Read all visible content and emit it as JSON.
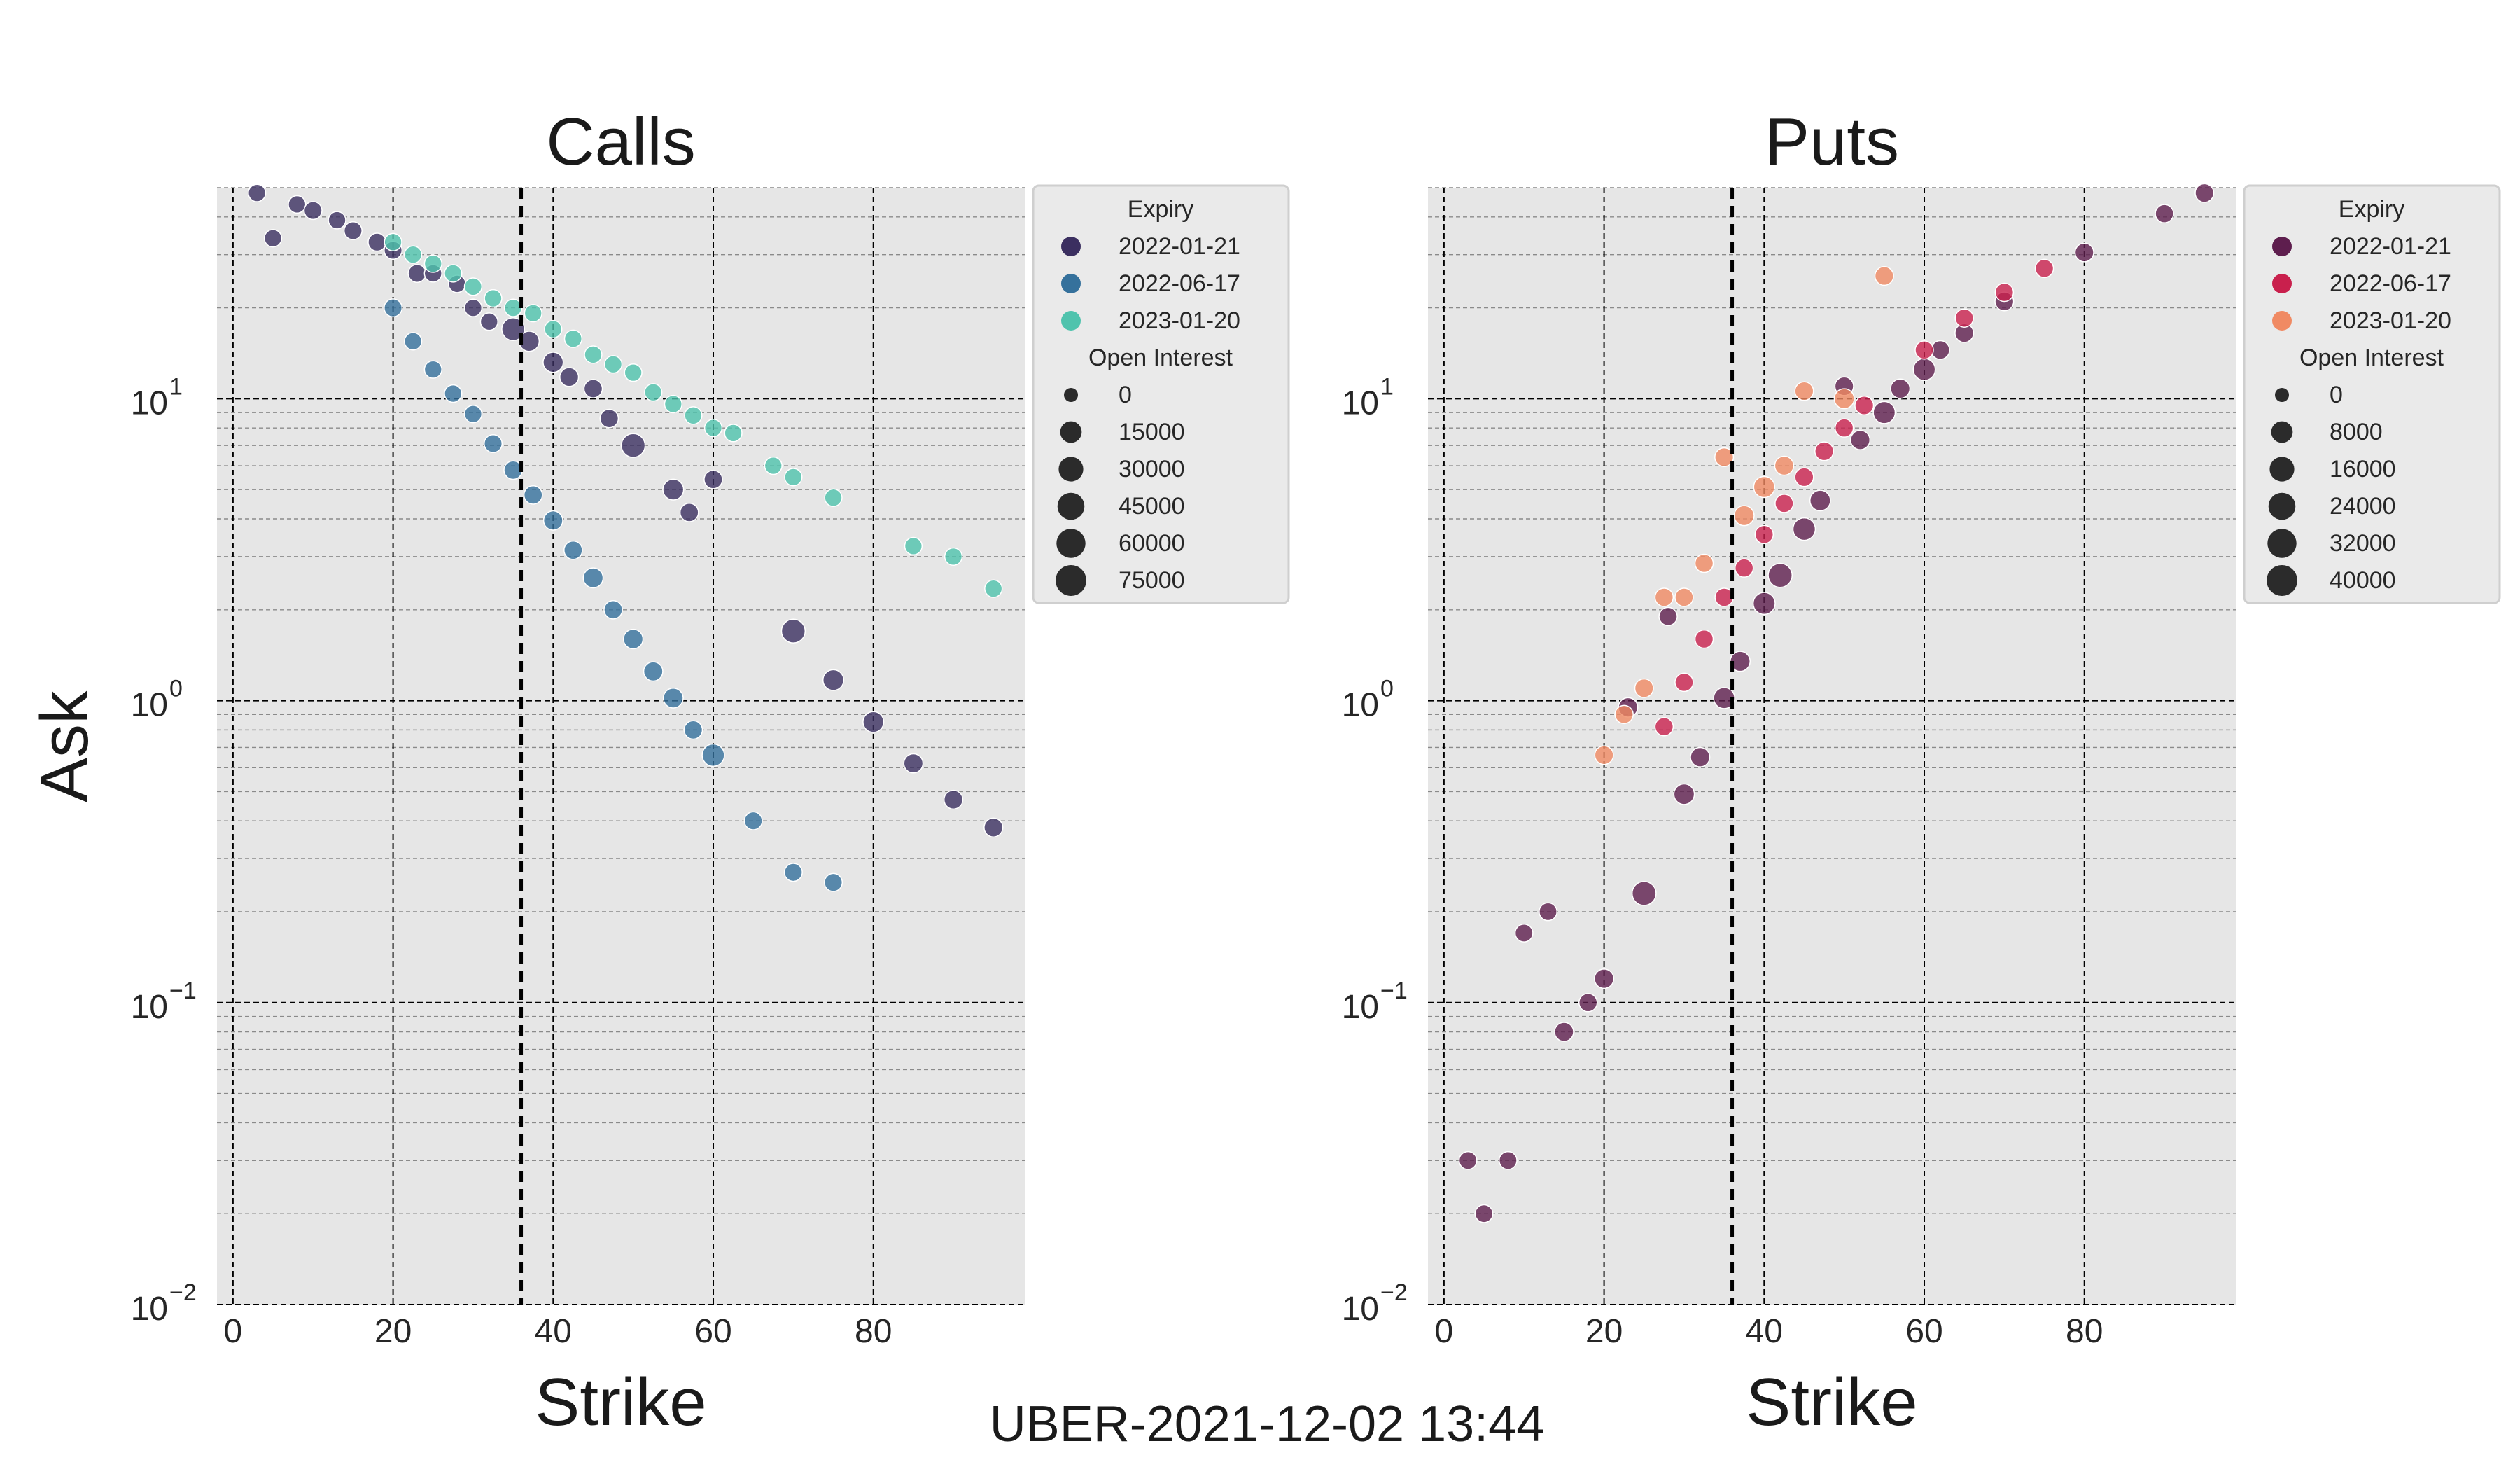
{
  "suptitle": "UBER-2021-12-02 13:44",
  "chart_data": [
    {
      "type": "scatter",
      "title": "Calls",
      "xlabel": "Strike",
      "ylabel": "Ask",
      "xlim": [
        -2,
        99
      ],
      "ylim": [
        0.01,
        50
      ],
      "yscale": "log",
      "x_ticks": [
        0,
        20,
        40,
        60,
        80
      ],
      "y_ticks": [
        {
          "base": "10",
          "exp": "−2",
          "value": 0.01
        },
        {
          "base": "10",
          "exp": "−1",
          "value": 0.1
        },
        {
          "base": "10",
          "exp": "0",
          "value": 1
        },
        {
          "base": "10",
          "exp": "1",
          "value": 10
        }
      ],
      "spot_price": 36,
      "grid": true,
      "legend": {
        "placement": "outside-right",
        "hue_title": "Expiry",
        "size_title": "Open Interest",
        "hue_entries": [
          {
            "label": "2022-01-21",
            "color": "#3b2f60"
          },
          {
            "label": "2022-06-17",
            "color": "#35719c"
          },
          {
            "label": "2023-01-20",
            "color": "#4fc3ad"
          }
        ],
        "size_entries": [
          {
            "label": "0",
            "value": 0
          },
          {
            "label": "15000",
            "value": 15000
          },
          {
            "label": "30000",
            "value": 30000
          },
          {
            "label": "45000",
            "value": 45000
          },
          {
            "label": "60000",
            "value": 60000
          },
          {
            "label": "75000",
            "value": 75000
          }
        ]
      },
      "series": [
        {
          "name": "2022-01-21",
          "color": "#3b2f60",
          "points": [
            {
              "x": 3,
              "y": 48,
              "oi": 3000
            },
            {
              "x": 5,
              "y": 34,
              "oi": 3000
            },
            {
              "x": 8,
              "y": 44,
              "oi": 3000
            },
            {
              "x": 10,
              "y": 42,
              "oi": 4000
            },
            {
              "x": 13,
              "y": 39,
              "oi": 3000
            },
            {
              "x": 15,
              "y": 36,
              "oi": 4000
            },
            {
              "x": 18,
              "y": 33,
              "oi": 4000
            },
            {
              "x": 20,
              "y": 31,
              "oi": 4000
            },
            {
              "x": 23,
              "y": 26,
              "oi": 4000
            },
            {
              "x": 25,
              "y": 26,
              "oi": 3000
            },
            {
              "x": 28,
              "y": 24,
              "oi": 3000
            },
            {
              "x": 30,
              "y": 20,
              "oi": 3000
            },
            {
              "x": 32,
              "y": 18,
              "oi": 3000
            },
            {
              "x": 35,
              "y": 17,
              "oi": 20000
            },
            {
              "x": 37,
              "y": 15.5,
              "oi": 10000
            },
            {
              "x": 40,
              "y": 13.2,
              "oi": 10000
            },
            {
              "x": 42,
              "y": 11.8,
              "oi": 6000
            },
            {
              "x": 45,
              "y": 10.8,
              "oi": 5000
            },
            {
              "x": 47,
              "y": 8.6,
              "oi": 5000
            },
            {
              "x": 50,
              "y": 7.0,
              "oi": 25000
            },
            {
              "x": 55,
              "y": 5.0,
              "oi": 12000
            },
            {
              "x": 57,
              "y": 4.2,
              "oi": 5000
            },
            {
              "x": 60,
              "y": 5.4,
              "oi": 5000
            },
            {
              "x": 70,
              "y": 1.7,
              "oi": 25000
            },
            {
              "x": 75,
              "y": 1.17,
              "oi": 12000
            },
            {
              "x": 80,
              "y": 0.85,
              "oi": 12000
            },
            {
              "x": 85,
              "y": 0.62,
              "oi": 7000
            },
            {
              "x": 90,
              "y": 0.47,
              "oi": 6000
            },
            {
              "x": 95,
              "y": 0.38,
              "oi": 6000
            }
          ]
        },
        {
          "name": "2022-06-17",
          "color": "#35719c",
          "points": [
            {
              "x": 20,
              "y": 20,
              "oi": 4000
            },
            {
              "x": 22.5,
              "y": 15.5,
              "oi": 3000
            },
            {
              "x": 25,
              "y": 12.5,
              "oi": 3000
            },
            {
              "x": 27.5,
              "y": 10.4,
              "oi": 3000
            },
            {
              "x": 30,
              "y": 8.9,
              "oi": 3000
            },
            {
              "x": 32.5,
              "y": 7.1,
              "oi": 4000
            },
            {
              "x": 35,
              "y": 5.8,
              "oi": 5000
            },
            {
              "x": 37.5,
              "y": 4.8,
              "oi": 5000
            },
            {
              "x": 40,
              "y": 3.95,
              "oi": 7000
            },
            {
              "x": 42.5,
              "y": 3.15,
              "oi": 5000
            },
            {
              "x": 45,
              "y": 2.55,
              "oi": 9000
            },
            {
              "x": 47.5,
              "y": 2.0,
              "oi": 5000
            },
            {
              "x": 50,
              "y": 1.6,
              "oi": 8000
            },
            {
              "x": 52.5,
              "y": 1.25,
              "oi": 7000
            },
            {
              "x": 55,
              "y": 1.02,
              "oi": 9000
            },
            {
              "x": 57.5,
              "y": 0.8,
              "oi": 5000
            },
            {
              "x": 60,
              "y": 0.66,
              "oi": 18000
            },
            {
              "x": 65,
              "y": 0.4,
              "oi": 4000
            },
            {
              "x": 70,
              "y": 0.27,
              "oi": 4000
            },
            {
              "x": 75,
              "y": 0.25,
              "oi": 4000
            }
          ]
        },
        {
          "name": "2023-01-20",
          "color": "#4fc3ad",
          "points": [
            {
              "x": 20,
              "y": 33,
              "oi": 3000
            },
            {
              "x": 22.5,
              "y": 30,
              "oi": 3000
            },
            {
              "x": 25,
              "y": 28,
              "oi": 3000
            },
            {
              "x": 27.5,
              "y": 26,
              "oi": 3000
            },
            {
              "x": 30,
              "y": 23.5,
              "oi": 3000
            },
            {
              "x": 32.5,
              "y": 21.5,
              "oi": 3000
            },
            {
              "x": 35,
              "y": 20,
              "oi": 3000
            },
            {
              "x": 37.5,
              "y": 19.2,
              "oi": 3000
            },
            {
              "x": 40,
              "y": 17,
              "oi": 3000
            },
            {
              "x": 42.5,
              "y": 15.8,
              "oi": 3000
            },
            {
              "x": 45,
              "y": 14,
              "oi": 3000
            },
            {
              "x": 47.5,
              "y": 13,
              "oi": 3000
            },
            {
              "x": 50,
              "y": 12.2,
              "oi": 3000
            },
            {
              "x": 52.5,
              "y": 10.5,
              "oi": 3000
            },
            {
              "x": 55,
              "y": 9.6,
              "oi": 3000
            },
            {
              "x": 57.5,
              "y": 8.8,
              "oi": 3000
            },
            {
              "x": 60,
              "y": 8.0,
              "oi": 3000
            },
            {
              "x": 62.5,
              "y": 7.7,
              "oi": 3000
            },
            {
              "x": 67.5,
              "y": 6.0,
              "oi": 3000
            },
            {
              "x": 70,
              "y": 5.5,
              "oi": 3000
            },
            {
              "x": 75,
              "y": 4.7,
              "oi": 3000
            },
            {
              "x": 85,
              "y": 3.25,
              "oi": 3000
            },
            {
              "x": 90,
              "y": 3.0,
              "oi": 3000
            },
            {
              "x": 95,
              "y": 2.35,
              "oi": 3000
            }
          ]
        }
      ]
    },
    {
      "type": "scatter",
      "title": "Puts",
      "xlabel": "Strike",
      "ylabel": "",
      "xlim": [
        -2,
        99
      ],
      "ylim": [
        0.01,
        50
      ],
      "yscale": "log",
      "x_ticks": [
        0,
        20,
        40,
        60,
        80
      ],
      "y_ticks": [
        {
          "base": "10",
          "exp": "−2",
          "value": 0.01
        },
        {
          "base": "10",
          "exp": "−1",
          "value": 0.1
        },
        {
          "base": "10",
          "exp": "0",
          "value": 1
        },
        {
          "base": "10",
          "exp": "1",
          "value": 10
        }
      ],
      "spot_price": 36,
      "grid": true,
      "legend": {
        "placement": "outside-right",
        "hue_title": "Expiry",
        "size_title": "Open Interest",
        "hue_entries": [
          {
            "label": "2022-01-21",
            "color": "#5e1e4e"
          },
          {
            "label": "2022-06-17",
            "color": "#c9204d"
          },
          {
            "label": "2023-01-20",
            "color": "#f08a63"
          }
        ],
        "size_entries": [
          {
            "label": "0",
            "value": 0
          },
          {
            "label": "8000",
            "value": 8000
          },
          {
            "label": "16000",
            "value": 16000
          },
          {
            "label": "24000",
            "value": 24000
          },
          {
            "label": "32000",
            "value": 32000
          },
          {
            "label": "40000",
            "value": 40000
          }
        ]
      },
      "series": [
        {
          "name": "2022-01-21",
          "color": "#5e1e4e",
          "points": [
            {
              "x": 3,
              "y": 0.03,
              "oi": 2000
            },
            {
              "x": 5,
              "y": 0.02,
              "oi": 2000
            },
            {
              "x": 8,
              "y": 0.03,
              "oi": 2000
            },
            {
              "x": 10,
              "y": 0.17,
              "oi": 2000
            },
            {
              "x": 13,
              "y": 0.2,
              "oi": 2000
            },
            {
              "x": 15,
              "y": 0.08,
              "oi": 3500
            },
            {
              "x": 18,
              "y": 0.1,
              "oi": 2500
            },
            {
              "x": 20,
              "y": 0.12,
              "oi": 4000
            },
            {
              "x": 23,
              "y": 0.95,
              "oi": 4000
            },
            {
              "x": 25,
              "y": 0.23,
              "oi": 14000
            },
            {
              "x": 28,
              "y": 1.9,
              "oi": 2500
            },
            {
              "x": 30,
              "y": 0.49,
              "oi": 6000
            },
            {
              "x": 32,
              "y": 0.65,
              "oi": 4000
            },
            {
              "x": 35,
              "y": 1.02,
              "oi": 7000
            },
            {
              "x": 37,
              "y": 1.35,
              "oi": 5000
            },
            {
              "x": 40,
              "y": 2.1,
              "oi": 9000
            },
            {
              "x": 42,
              "y": 2.6,
              "oi": 14000
            },
            {
              "x": 45,
              "y": 3.7,
              "oi": 10000
            },
            {
              "x": 47,
              "y": 4.6,
              "oi": 6000
            },
            {
              "x": 50,
              "y": 11,
              "oi": 3000
            },
            {
              "x": 52,
              "y": 7.3,
              "oi": 4000
            },
            {
              "x": 55,
              "y": 9.0,
              "oi": 9000
            },
            {
              "x": 57,
              "y": 10.8,
              "oi": 4000
            },
            {
              "x": 60,
              "y": 12.5,
              "oi": 9000
            },
            {
              "x": 62,
              "y": 14.5,
              "oi": 3000
            },
            {
              "x": 65,
              "y": 16.5,
              "oi": 3000
            },
            {
              "x": 70,
              "y": 21,
              "oi": 3000
            },
            {
              "x": 80,
              "y": 30.5,
              "oi": 3000
            },
            {
              "x": 90,
              "y": 41,
              "oi": 2500
            },
            {
              "x": 95,
              "y": 48,
              "oi": 3000
            }
          ]
        },
        {
          "name": "2022-06-17",
          "color": "#c9204d",
          "points": [
            {
              "x": 27.5,
              "y": 0.82,
              "oi": 2500
            },
            {
              "x": 30,
              "y": 1.15,
              "oi": 2500
            },
            {
              "x": 32.5,
              "y": 1.6,
              "oi": 2500
            },
            {
              "x": 35,
              "y": 2.2,
              "oi": 2500
            },
            {
              "x": 37.5,
              "y": 2.75,
              "oi": 2500
            },
            {
              "x": 40,
              "y": 3.55,
              "oi": 2500
            },
            {
              "x": 42.5,
              "y": 4.5,
              "oi": 2500
            },
            {
              "x": 45,
              "y": 5.5,
              "oi": 3000
            },
            {
              "x": 47.5,
              "y": 6.7,
              "oi": 3000
            },
            {
              "x": 50,
              "y": 8.0,
              "oi": 2500
            },
            {
              "x": 52.5,
              "y": 9.5,
              "oi": 3000
            },
            {
              "x": 60,
              "y": 14.5,
              "oi": 2500
            },
            {
              "x": 65,
              "y": 18.5,
              "oi": 2500
            },
            {
              "x": 70,
              "y": 22.5,
              "oi": 2500
            },
            {
              "x": 75,
              "y": 27,
              "oi": 2500
            }
          ]
        },
        {
          "name": "2023-01-20",
          "color": "#f08a63",
          "points": [
            {
              "x": 20,
              "y": 0.66,
              "oi": 3000
            },
            {
              "x": 22.5,
              "y": 0.9,
              "oi": 2500
            },
            {
              "x": 25,
              "y": 1.1,
              "oi": 3000
            },
            {
              "x": 27.5,
              "y": 2.2,
              "oi": 2500
            },
            {
              "x": 30,
              "y": 2.2,
              "oi": 2500
            },
            {
              "x": 32.5,
              "y": 2.85,
              "oi": 2500
            },
            {
              "x": 35,
              "y": 6.4,
              "oi": 3000
            },
            {
              "x": 37.5,
              "y": 4.1,
              "oi": 5000
            },
            {
              "x": 40,
              "y": 5.1,
              "oi": 7000
            },
            {
              "x": 42.5,
              "y": 6.0,
              "oi": 3500
            },
            {
              "x": 45,
              "y": 10.6,
              "oi": 3000
            },
            {
              "x": 50,
              "y": 10.0,
              "oi": 5000
            },
            {
              "x": 55,
              "y": 25.5,
              "oi": 3000
            }
          ]
        }
      ]
    }
  ]
}
